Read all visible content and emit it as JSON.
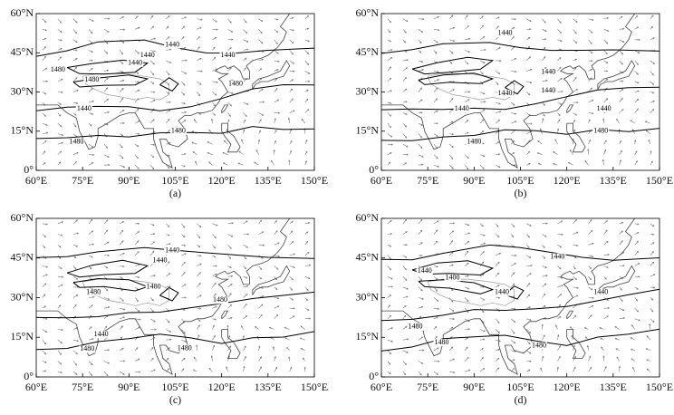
{
  "chart_data": [
    {
      "type": "map",
      "label": "(a)",
      "xlim": [
        60,
        150
      ],
      "ylim": [
        0,
        60
      ],
      "xticks": [
        {
          "value": 60,
          "label": "60°E"
        },
        {
          "value": 75,
          "label": "75°E"
        },
        {
          "value": 90,
          "label": "90°E"
        },
        {
          "value": 105,
          "label": "105°E"
        },
        {
          "value": 120,
          "label": "120°E"
        },
        {
          "value": 135,
          "label": "135°E"
        },
        {
          "value": 150,
          "label": "150°E"
        }
      ],
      "yticks": [
        {
          "value": 0,
          "label": "0°"
        },
        {
          "value": 15,
          "label": "15°N"
        },
        {
          "value": 30,
          "label": "30°N"
        },
        {
          "value": 45,
          "label": "45°N"
        },
        {
          "value": 60,
          "label": "60°N"
        }
      ],
      "contour_labels": [
        {
          "value": 1440,
          "lon": 104,
          "lat": 48
        },
        {
          "value": 1480,
          "lon": 67,
          "lat": 38.5
        },
        {
          "value": 1440,
          "lon": 92,
          "lat": 41
        },
        {
          "value": 1440,
          "lon": 96,
          "lat": 44
        },
        {
          "value": 1440,
          "lon": 122,
          "lat": 44
        },
        {
          "value": 1480,
          "lon": 78,
          "lat": 34.7
        },
        {
          "value": 1480,
          "lon": 124.5,
          "lat": 33
        },
        {
          "value": 1440,
          "lon": 75.5,
          "lat": 23.6
        },
        {
          "value": 1480,
          "lon": 73,
          "lat": 10.8
        },
        {
          "value": 1480,
          "lon": 106,
          "lat": 15
        }
      ]
    },
    {
      "type": "map",
      "label": "(b)",
      "xlim": [
        60,
        150
      ],
      "ylim": [
        0,
        60
      ],
      "xticks": [
        {
          "value": 60,
          "label": "60°E"
        },
        {
          "value": 75,
          "label": "75°E"
        },
        {
          "value": 90,
          "label": "90°E"
        },
        {
          "value": 105,
          "label": "105°E"
        },
        {
          "value": 120,
          "label": "120°E"
        },
        {
          "value": 135,
          "label": "135°E"
        },
        {
          "value": 150,
          "label": "150°E"
        }
      ],
      "yticks": [
        {
          "value": 0,
          "label": "0°"
        },
        {
          "value": 15,
          "label": "15°N"
        },
        {
          "value": 30,
          "label": "30°N"
        },
        {
          "value": 45,
          "label": "45°N"
        },
        {
          "value": 60,
          "label": "60°N"
        }
      ],
      "contour_labels": [
        {
          "value": 1440,
          "lon": 100,
          "lat": 52.4
        },
        {
          "value": 1440,
          "lon": 114,
          "lat": 37.5
        },
        {
          "value": 1440,
          "lon": 100,
          "lat": 29.5
        },
        {
          "value": 1440,
          "lon": 114,
          "lat": 30.5
        },
        {
          "value": 1440,
          "lon": 132,
          "lat": 23.6
        },
        {
          "value": 1440,
          "lon": 86,
          "lat": 23.6
        },
        {
          "value": 1480,
          "lon": 90,
          "lat": 10.8
        },
        {
          "value": 1480,
          "lon": 131,
          "lat": 15
        }
      ]
    },
    {
      "type": "map",
      "label": "(c)",
      "xlim": [
        60,
        150
      ],
      "ylim": [
        0,
        60
      ],
      "xticks": [
        {
          "value": 60,
          "label": "60°E"
        },
        {
          "value": 75,
          "label": "75°E"
        },
        {
          "value": 90,
          "label": "90°E"
        },
        {
          "value": 105,
          "label": "105°E"
        },
        {
          "value": 120,
          "label": "120°E"
        },
        {
          "value": 135,
          "label": "135°E"
        },
        {
          "value": 150,
          "label": "150°E"
        }
      ],
      "yticks": [
        {
          "value": 0,
          "label": "0°"
        },
        {
          "value": 15,
          "label": "15°N"
        },
        {
          "value": 30,
          "label": "30°N"
        },
        {
          "value": 45,
          "label": "45°N"
        },
        {
          "value": 60,
          "label": "60°N"
        }
      ],
      "contour_labels": [
        {
          "value": 1440,
          "lon": 104,
          "lat": 47.7
        },
        {
          "value": 1440,
          "lon": 100,
          "lat": 44
        },
        {
          "value": 1480,
          "lon": 78.5,
          "lat": 32
        },
        {
          "value": 1480,
          "lon": 98,
          "lat": 34
        },
        {
          "value": 1480,
          "lon": 119.5,
          "lat": 29
        },
        {
          "value": 1440,
          "lon": 81,
          "lat": 16
        },
        {
          "value": 1480,
          "lon": 76.5,
          "lat": 10.5
        },
        {
          "value": 1480,
          "lon": 108,
          "lat": 10.8
        }
      ]
    },
    {
      "type": "map",
      "label": "(d)",
      "xlim": [
        60,
        150
      ],
      "ylim": [
        0,
        60
      ],
      "xticks": [
        {
          "value": 60,
          "label": "60°E"
        },
        {
          "value": 75,
          "label": "75°E"
        },
        {
          "value": 90,
          "label": "90°E"
        },
        {
          "value": 105,
          "label": "105°E"
        },
        {
          "value": 120,
          "label": "120°E"
        },
        {
          "value": 135,
          "label": "135°E"
        },
        {
          "value": 150,
          "label": "150°E"
        }
      ],
      "yticks": [
        {
          "value": 0,
          "label": "0°"
        },
        {
          "value": 15,
          "label": "15°N"
        },
        {
          "value": 30,
          "label": "30°N"
        },
        {
          "value": 45,
          "label": "45°N"
        },
        {
          "value": 60,
          "label": "60°N"
        }
      ],
      "contour_labels": [
        {
          "value": 1440,
          "lon": 117,
          "lat": 45.4
        },
        {
          "value": 1400,
          "lon": 83,
          "lat": 37.5
        },
        {
          "value": 1440,
          "lon": 74,
          "lat": 40
        },
        {
          "value": 1440,
          "lon": 99,
          "lat": 32
        },
        {
          "value": 1480,
          "lon": 71,
          "lat": 19
        },
        {
          "value": 1480,
          "lon": 79.5,
          "lat": 13
        },
        {
          "value": 1480,
          "lon": 111,
          "lat": 11.8
        },
        {
          "value": 1440,
          "lon": 131,
          "lat": 32
        }
      ]
    }
  ]
}
